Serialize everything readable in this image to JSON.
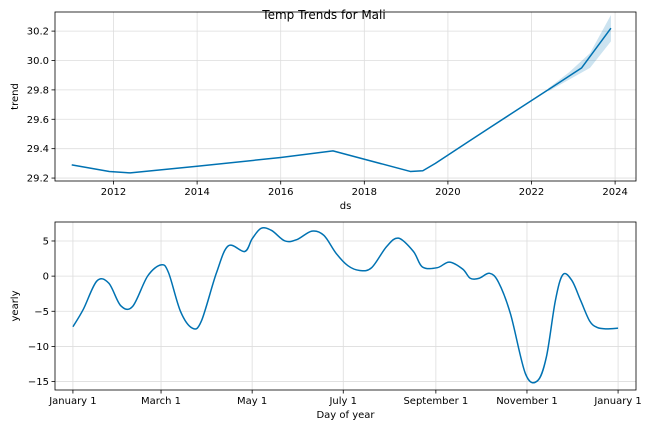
{
  "chart_data": [
    {
      "type": "area",
      "title": "Temp Trends for Mali",
      "xlabel": "ds",
      "ylabel": "trend",
      "xlim": [
        2010.6,
        2024.5
      ],
      "ylim": [
        29.18,
        30.33
      ],
      "xticks": [
        2012,
        2014,
        2016,
        2018,
        2020,
        2022,
        2024
      ],
      "xtick_labels": [
        "2012",
        "2014",
        "2016",
        "2018",
        "2020",
        "2022",
        "2024"
      ],
      "yticks": [
        29.2,
        29.4,
        29.6,
        29.8,
        30.0,
        30.2
      ],
      "ytick_labels": [
        "29.2",
        "29.4",
        "29.6",
        "29.8",
        "30.0",
        "30.2"
      ],
      "grid": true,
      "line_color": "#0072B2",
      "band_color": "#0072B2",
      "series": [
        {
          "x": [
            2011.0,
            2011.9,
            2012.4,
            2014.0,
            2016.0,
            2017.25,
            2019.1,
            2019.4,
            2019.7,
            2020.5,
            2021.5,
            2022.5,
            2023.2,
            2023.9
          ],
          "values": [
            29.29,
            29.245,
            29.235,
            29.28,
            29.34,
            29.385,
            29.245,
            29.25,
            29.3,
            29.45,
            29.635,
            29.82,
            29.95,
            30.22
          ]
        }
      ],
      "band": {
        "x": [
          2022.4,
          2022.9,
          2023.4,
          2023.9
        ],
        "upper": [
          29.81,
          29.92,
          30.05,
          30.31
        ],
        "lower": [
          29.79,
          29.87,
          29.95,
          30.13
        ]
      }
    },
    {
      "type": "line",
      "title": "",
      "xlabel": "Day of year",
      "ylabel": "yearly",
      "xlim": [
        -12,
        377
      ],
      "ylim": [
        -16.2,
        7.7
      ],
      "xticks": [
        0,
        59,
        120,
        181,
        243,
        304,
        365
      ],
      "xtick_labels": [
        "January 1",
        "March 1",
        "May 1",
        "July 1",
        "September 1",
        "November 1",
        "January 1"
      ],
      "yticks": [
        -15,
        -10,
        -5,
        0,
        5
      ],
      "ytick_labels": [
        "−15",
        "−10",
        "−5",
        "0",
        "5"
      ],
      "grid": true,
      "line_color": "#0072B2",
      "series": [
        {
          "x": [
            0,
            7,
            16,
            24,
            32,
            40,
            50,
            59,
            64,
            72,
            80,
            86,
            96,
            104,
            115,
            120,
            126,
            133,
            142,
            150,
            160,
            168,
            176,
            184,
            192,
            200,
            210,
            218,
            228,
            234,
            244,
            252,
            261,
            266,
            272,
            279,
            285,
            293,
            303,
            311,
            317,
            323,
            328,
            334,
            340,
            346,
            351,
            357,
            365
          ],
          "values": [
            -7.2,
            -4.7,
            -0.7,
            -1.0,
            -4.2,
            -4.3,
            0.0,
            1.6,
            0.5,
            -5.0,
            -7.4,
            -6.4,
            0.4,
            4.3,
            3.5,
            5.3,
            6.8,
            6.5,
            5.0,
            5.2,
            6.4,
            5.8,
            3.3,
            1.5,
            0.8,
            1.2,
            4.2,
            5.4,
            3.5,
            1.3,
            1.2,
            2.0,
            1.0,
            -0.3,
            -0.3,
            0.4,
            -0.9,
            -5.4,
            -13.9,
            -14.9,
            -11.5,
            -3.5,
            0.2,
            -0.6,
            -3.5,
            -6.4,
            -7.3,
            -7.5,
            -7.4
          ]
        }
      ]
    }
  ]
}
